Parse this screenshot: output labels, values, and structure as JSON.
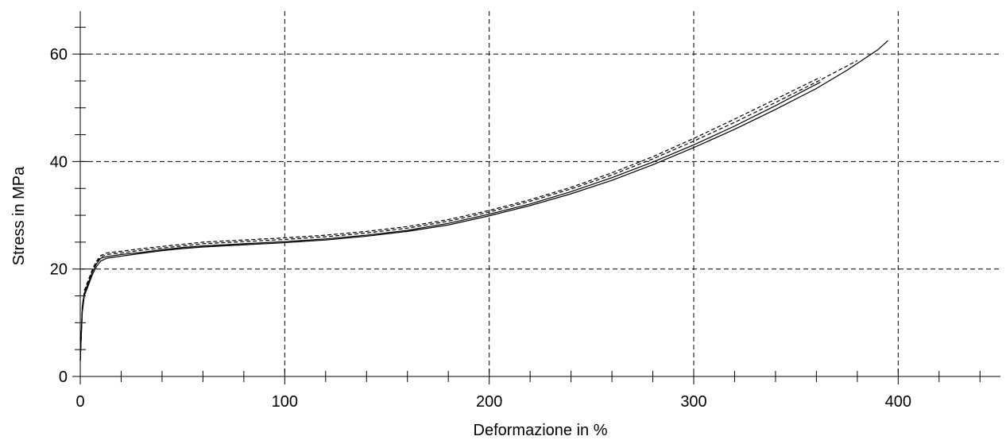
{
  "chart_data": {
    "type": "line",
    "title": "",
    "xlabel": "Deformazione in %",
    "ylabel": "Stress in MPa",
    "xlim": [
      0,
      450
    ],
    "ylim": [
      0,
      68
    ],
    "x_ticks": [
      0,
      100,
      200,
      300,
      400
    ],
    "y_ticks": [
      0,
      20,
      40,
      60
    ],
    "x_tick_labels": [
      "0",
      "100",
      "200",
      "300",
      "400"
    ],
    "y_tick_labels": [
      "0",
      "20",
      "40",
      "60"
    ],
    "x_minor_step": 20,
    "y_minor_step": 5,
    "grid": "dashed at major ticks",
    "legend": "none",
    "colors": {
      "axis": "#000000",
      "grid": "#000000",
      "series": "#000000"
    },
    "series": [
      {
        "style": "solid",
        "points": [
          [
            0,
            3
          ],
          [
            1,
            12
          ],
          [
            2,
            15
          ],
          [
            4,
            17
          ],
          [
            6,
            19
          ],
          [
            8,
            20.5
          ],
          [
            10,
            21.5
          ],
          [
            13,
            22
          ],
          [
            20,
            22.4
          ],
          [
            30,
            22.9
          ],
          [
            40,
            23.4
          ],
          [
            50,
            23.8
          ],
          [
            60,
            24.1
          ],
          [
            80,
            24.5
          ],
          [
            100,
            24.9
          ],
          [
            120,
            25.4
          ],
          [
            140,
            26.1
          ],
          [
            160,
            27
          ],
          [
            180,
            28.2
          ],
          [
            200,
            29.9
          ],
          [
            220,
            31.8
          ],
          [
            240,
            34
          ],
          [
            260,
            36.5
          ],
          [
            280,
            39.4
          ],
          [
            300,
            42.6
          ],
          [
            320,
            46
          ],
          [
            340,
            49.7
          ],
          [
            360,
            53.6
          ],
          [
            375,
            57
          ],
          [
            390,
            60.8
          ],
          [
            395,
            62.5
          ]
        ]
      },
      {
        "style": "solid",
        "points": [
          [
            0,
            3
          ],
          [
            1,
            13
          ],
          [
            2,
            15.5
          ],
          [
            4,
            17.5
          ],
          [
            6,
            19.5
          ],
          [
            8,
            21
          ],
          [
            10,
            22
          ],
          [
            13,
            22.3
          ],
          [
            20,
            22.7
          ],
          [
            30,
            23.1
          ],
          [
            40,
            23.6
          ],
          [
            50,
            24
          ],
          [
            60,
            24.3
          ],
          [
            80,
            24.7
          ],
          [
            100,
            25.1
          ],
          [
            120,
            25.6
          ],
          [
            140,
            26.3
          ],
          [
            160,
            27.2
          ],
          [
            180,
            28.5
          ],
          [
            200,
            30.2
          ],
          [
            220,
            32.1
          ],
          [
            240,
            34.4
          ],
          [
            260,
            37
          ],
          [
            280,
            39.9
          ],
          [
            300,
            43.1
          ],
          [
            320,
            46.6
          ],
          [
            340,
            50.4
          ],
          [
            362,
            54.8
          ]
        ]
      },
      {
        "style": "dashed",
        "points": [
          [
            0,
            3
          ],
          [
            1,
            13
          ],
          [
            2,
            16
          ],
          [
            4,
            18
          ],
          [
            6,
            20
          ],
          [
            8,
            21.5
          ],
          [
            10,
            22.5
          ],
          [
            13,
            23
          ],
          [
            20,
            23.3
          ],
          [
            30,
            23.8
          ],
          [
            40,
            24.2
          ],
          [
            50,
            24.6
          ],
          [
            60,
            25
          ],
          [
            80,
            25.4
          ],
          [
            100,
            25.8
          ],
          [
            120,
            26.3
          ],
          [
            140,
            27
          ],
          [
            160,
            27.9
          ],
          [
            180,
            29.2
          ],
          [
            200,
            30.9
          ],
          [
            220,
            32.9
          ],
          [
            240,
            35.2
          ],
          [
            260,
            37.9
          ],
          [
            280,
            40.9
          ],
          [
            300,
            44.3
          ],
          [
            320,
            47.9
          ],
          [
            340,
            51.6
          ],
          [
            362,
            55.7
          ]
        ]
      },
      {
        "style": "dashed",
        "points": [
          [
            0,
            3
          ],
          [
            1,
            12.5
          ],
          [
            2,
            15.5
          ],
          [
            4,
            17.8
          ],
          [
            6,
            19.8
          ],
          [
            8,
            21.2
          ],
          [
            10,
            22.2
          ],
          [
            13,
            22.7
          ],
          [
            20,
            23
          ],
          [
            30,
            23.5
          ],
          [
            40,
            23.9
          ],
          [
            50,
            24.3
          ],
          [
            60,
            24.7
          ],
          [
            80,
            25.1
          ],
          [
            100,
            25.5
          ],
          [
            120,
            26
          ],
          [
            140,
            26.7
          ],
          [
            160,
            27.6
          ],
          [
            180,
            28.9
          ],
          [
            200,
            30.6
          ],
          [
            220,
            32.6
          ],
          [
            240,
            34.9
          ],
          [
            260,
            37.5
          ],
          [
            280,
            40.5
          ],
          [
            300,
            43.8
          ],
          [
            320,
            47.3
          ],
          [
            340,
            51
          ],
          [
            360,
            54.8
          ],
          [
            380,
            58.8
          ]
        ]
      }
    ]
  }
}
